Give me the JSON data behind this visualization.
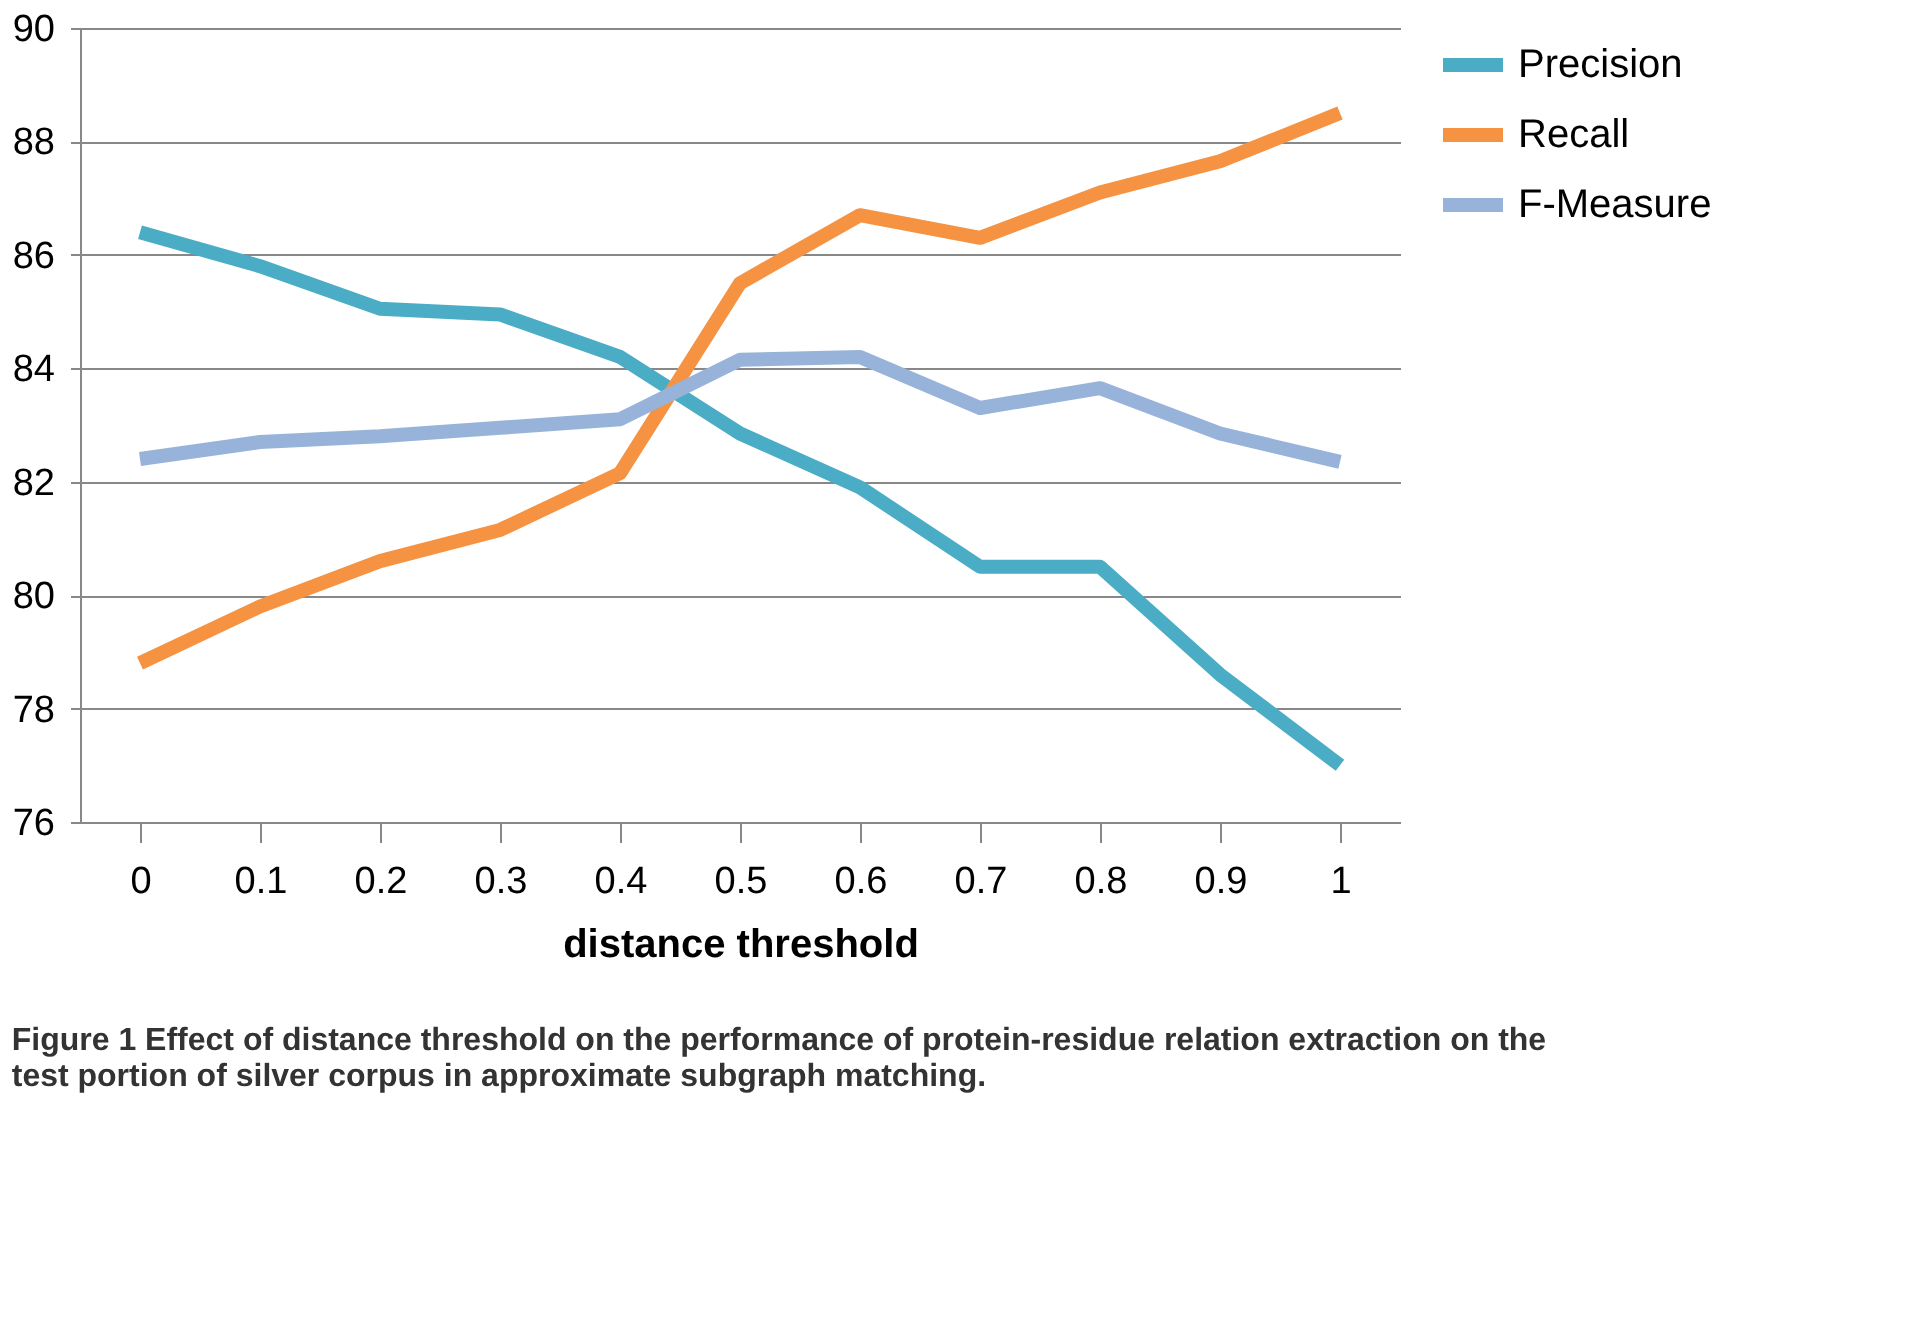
{
  "chart_data": {
    "type": "line",
    "xlabel": "distance threshold",
    "categories": [
      "0",
      "0.1",
      "0.2",
      "0.3",
      "0.4",
      "0.5",
      "0.6",
      "0.7",
      "0.8",
      "0.9",
      "1"
    ],
    "series": [
      {
        "name": "Precision",
        "color": "#4aacc5",
        "values": [
          86.4,
          85.8,
          85.05,
          84.95,
          84.2,
          82.85,
          81.9,
          80.5,
          80.5,
          78.6,
          77.0
        ]
      },
      {
        "name": "Recall",
        "color": "#f59343",
        "values": [
          78.8,
          79.8,
          80.6,
          81.15,
          82.15,
          85.5,
          86.7,
          86.3,
          87.1,
          87.65,
          88.5
        ]
      },
      {
        "name": "F-Measure",
        "color": "#98b3da",
        "values": [
          82.4,
          82.7,
          82.8,
          82.95,
          83.1,
          84.15,
          84.2,
          83.3,
          83.65,
          82.85,
          82.35
        ]
      }
    ],
    "ylim": [
      76,
      90
    ],
    "yticks": [
      76,
      78,
      80,
      82,
      84,
      86,
      88,
      90
    ],
    "grid": "y",
    "legend": "right",
    "marker": "none",
    "line_style": "solid",
    "annotations": [
      "Figure 1 Effect of distance threshold on the performance of protein-residue relation extraction on the test portion of silver corpus in approximate subgraph matching."
    ]
  }
}
